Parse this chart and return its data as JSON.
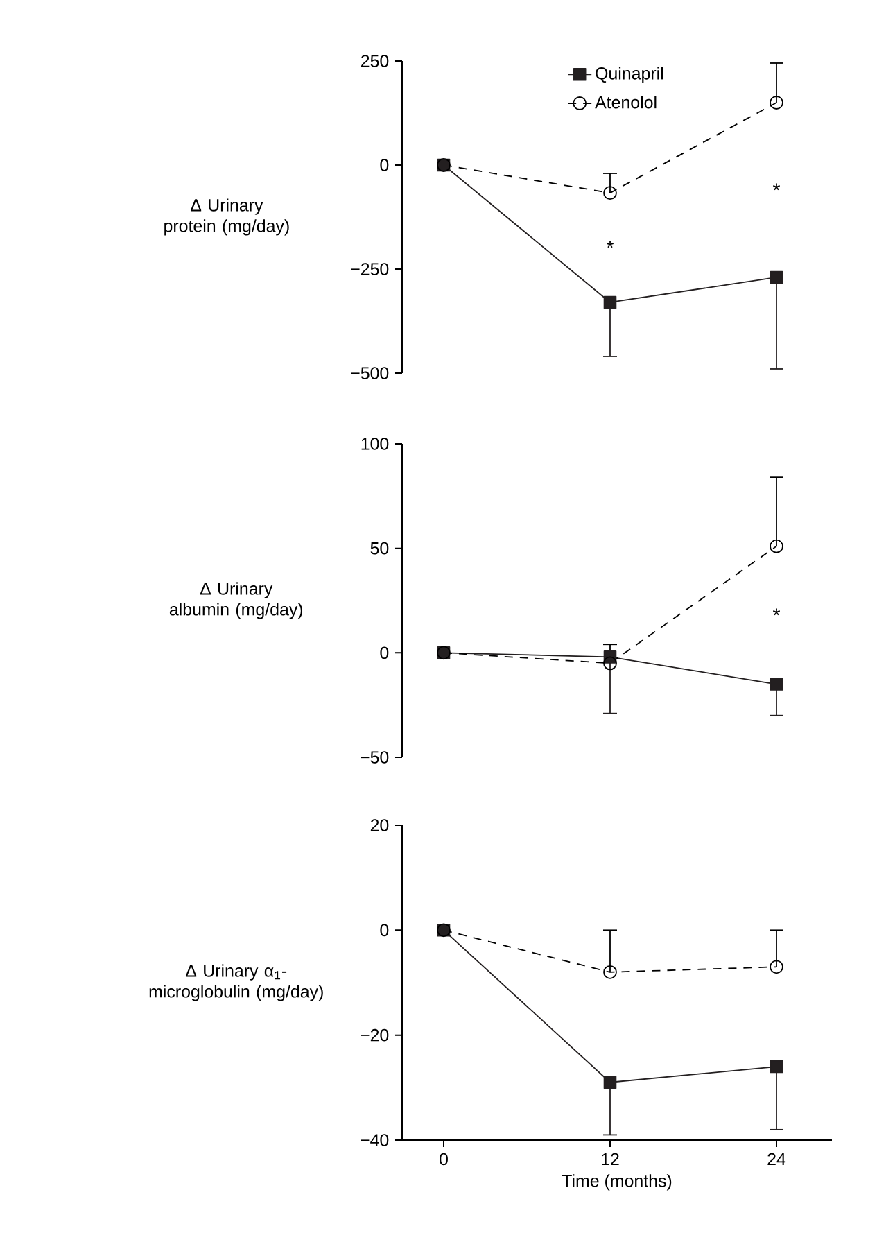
{
  "chart_data": [
    {
      "type": "line",
      "ylabel": "Δ Urinary protein (mg/day)",
      "x": [
        0,
        12,
        24
      ],
      "ylim": [
        -500,
        250
      ],
      "yticks": [
        {
          "value": -500,
          "label": "−500"
        },
        {
          "value": -250,
          "label": "−250"
        },
        0,
        250
      ],
      "tick_labels": "y",
      "legend": "top",
      "series": [
        {
          "name": "Quinapril",
          "color": "#231f20",
          "marker": "square",
          "line_style": "solid",
          "values": [
            0,
            -330,
            -270
          ],
          "errors": [
            null,
            [
              -460,
              -330
            ],
            [
              -490,
              -270
            ]
          ]
        },
        {
          "name": "Atenolol",
          "color": "#000000",
          "marker": "circle",
          "line_style": "dashed",
          "values": [
            0,
            -67,
            150
          ],
          "errors": [
            null,
            [
              -67,
              -20
            ],
            [
              150,
              245
            ]
          ]
        }
      ],
      "annotations": [
        "*",
        "*"
      ]
    },
    {
      "type": "line",
      "ylabel": "Δ Urinary albumin (mg/day)",
      "x": [
        0,
        12,
        24
      ],
      "ylim": [
        -50,
        100
      ],
      "yticks": [
        {
          "value": -50,
          "label": "−50"
        },
        0,
        50,
        100
      ],
      "tick_labels": "y",
      "series": [
        {
          "color": "#231f20",
          "marker": "square",
          "line_style": "solid",
          "values": [
            0,
            -2,
            -15
          ],
          "errors": [
            null,
            [
              -29,
              -2
            ],
            [
              -30,
              -15
            ]
          ]
        },
        {
          "color": "#000000",
          "marker": "circle",
          "line_style": "dashed",
          "values": [
            0,
            -5,
            51
          ],
          "errors": [
            null,
            [
              -5,
              4
            ],
            [
              51,
              84
            ]
          ]
        }
      ],
      "annotations": [
        "*"
      ]
    },
    {
      "type": "line",
      "ylabel": "Δ Urinary α$_{1}$-microglobulin (mg/day)",
      "xlabel": "Time (months)",
      "x": [
        0,
        12,
        24
      ],
      "xlim": [
        -3,
        28
      ],
      "ylim": [
        -40,
        20
      ],
      "xticks": [
        0,
        12,
        24
      ],
      "yticks": [
        {
          "value": -40,
          "label": "−40"
        },
        {
          "value": -20,
          "label": "−20"
        },
        0,
        20
      ],
      "series": [
        {
          "color": "#231f20",
          "marker": "square",
          "line_style": "solid",
          "values": [
            0,
            -29,
            -26
          ],
          "errors": [
            null,
            [
              -39,
              -29
            ],
            [
              -38,
              -26
            ]
          ]
        },
        {
          "color": "#000000",
          "marker": "circle",
          "line_style": "dashed",
          "values": [
            0,
            -8,
            -7
          ],
          "errors": [
            null,
            [
              -8,
              0
            ],
            [
              -7,
              0
            ]
          ]
        }
      ]
    }
  ]
}
